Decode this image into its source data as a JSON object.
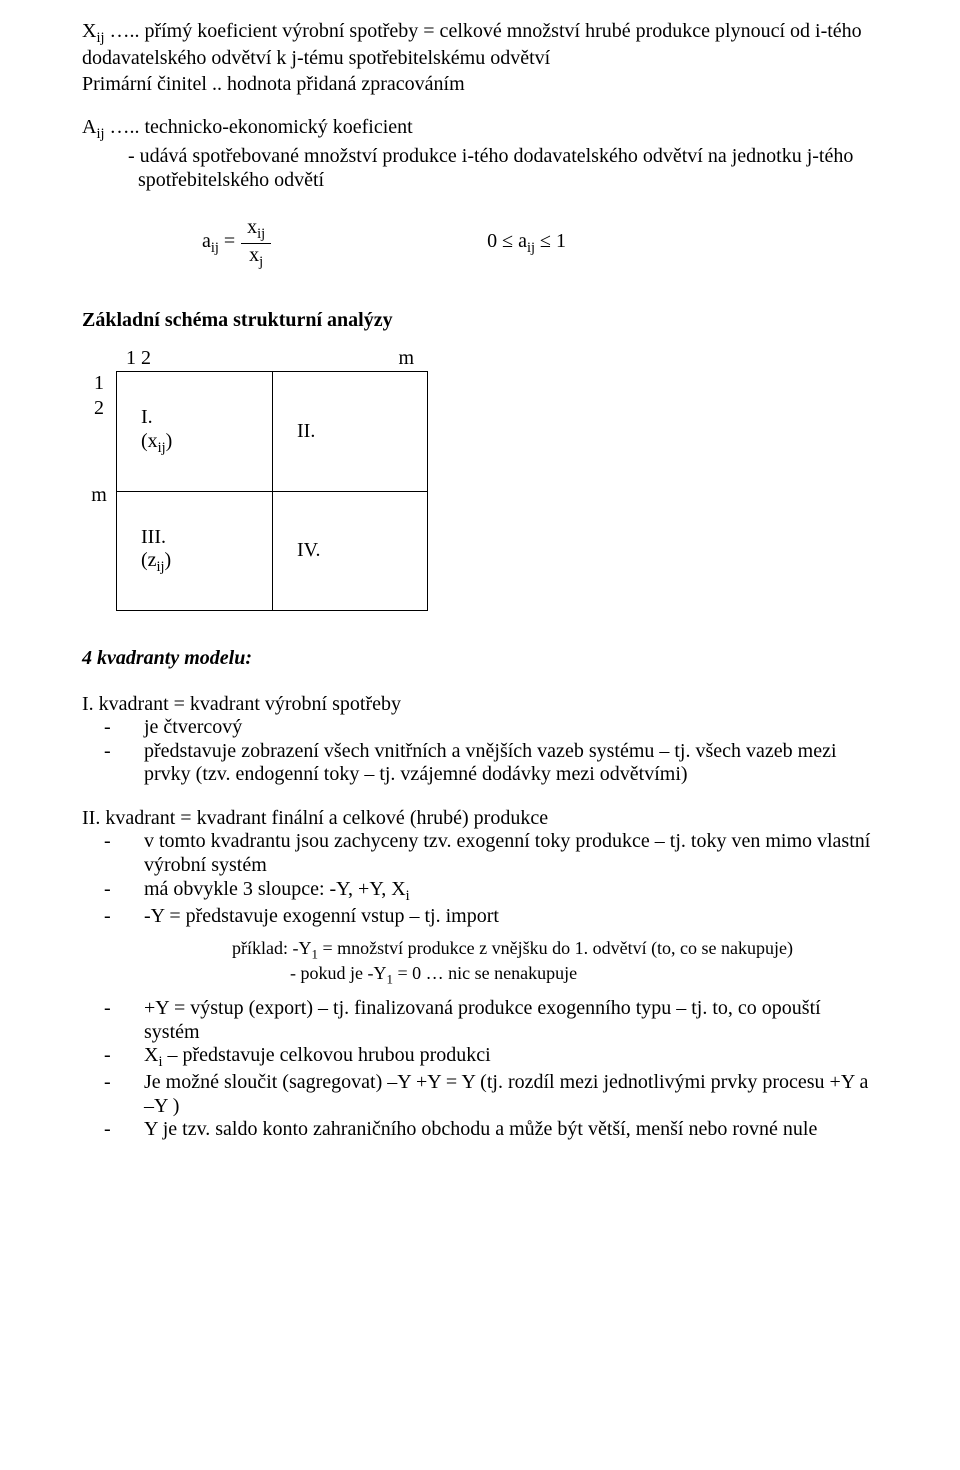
{
  "defs": {
    "xij": "X<span class=\"sub\">ij</span> ….. přímý koeficient výrobní spotřeby = celkové množství hrubé produkce plynoucí od i-tého dodavatelského odvětví k j-tému spotřebitelskému odvětví",
    "primarni": "Primární činitel .. hodnota přidaná zpracováním",
    "aij_head": "A<span class=\"sub\">ij</span> ….. technicko-ekonomický koeficient",
    "aij_sub1": "- udává spotřebované množství produkce i-tého dodavatelského odvětví na jednotku j-tého spotřebitelského odvětí"
  },
  "formula": {
    "lhs": "a<span class=\"sub\">ij</span> =",
    "num": "x<span class=\"sub\">ij</span>",
    "den": "x<span class=\"sub\">j</span>",
    "range": "0 ≤ a<span class=\"sub\">ij</span> ≤ 1"
  },
  "schema": {
    "title": "Základní schéma strukturní analýzy",
    "top_left": "1  2",
    "top_right": "m",
    "side_top": "1<br>2",
    "side_m": "m",
    "q1_a": "I.",
    "q1_b": "(x<span class=\"sub\">ij</span>)",
    "q2": "II.",
    "q3_a": "III.",
    "q3_b": "(z<span class=\"sub\">ij</span>)",
    "q4": "IV."
  },
  "quad": {
    "title": "4 kvadranty modelu:",
    "h1": "I. kvadrant = kvadrant výrobní spotřeby",
    "l1_1": "je čtvercový",
    "l1_2": "představuje zobrazení všech vnitřních a vnějších vazeb systému – tj. všech vazeb mezi prvky (tzv. endogenní toky – tj. vzájemné dodávky mezi odvětvími)",
    "h2": "II. kvadrant = kvadrant finální  a celkové (hrubé) produkce",
    "l2_1": "v tomto kvadrantu jsou zachyceny  tzv. exogenní toky produkce – tj. toky ven mimo vlastní výrobní systém",
    "l2_2": "má obvykle 3 sloupce: -Y, +Y, X<span class=\"sub\">i</span>",
    "l2_3": "-Y = představuje exogenní vstup – tj. import",
    "ex1": "příklad:  -Y<span class=\"sub\">1</span> = množství produkce z vnějšku do 1. odvětví (to, co se nakupuje)",
    "ex2": "- pokud je  -Y<span class=\"sub\">1</span> = 0 … nic se nenakupuje",
    "l2_4": "+Y = výstup (export) – tj. finalizovaná produkce exogenního typu – tj. to, co opouští systém",
    "l2_5": "X<span class=\"sub\">i</span> – představuje celkovou hrubou produkci",
    "l2_6": "Je možné sloučit (sagregovat)   –Y   +Y = Y  (tj. rozdíl mezi jednotlivými prvky procesu +Y a –Y )",
    "l2_7": "Y je tzv. saldo konto zahraničního obchodu a může být větší, menší nebo rovné nule"
  }
}
